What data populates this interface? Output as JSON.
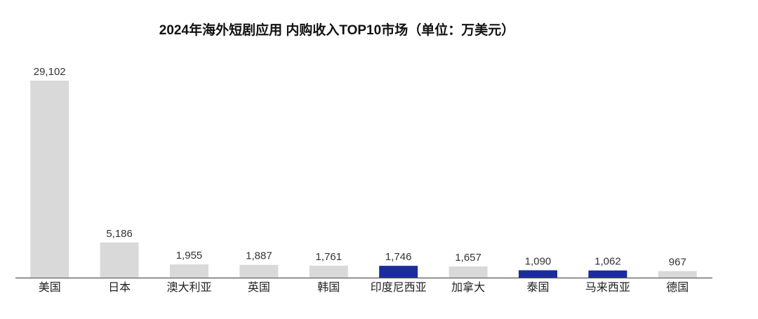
{
  "chart_data": {
    "type": "bar",
    "title": "2024年海外短剧应用 内购收入TOP10市场（单位：万美元）",
    "categories": [
      "美国",
      "日本",
      "澳大利亚",
      "英国",
      "韩国",
      "印度尼西亚",
      "加拿大",
      "泰国",
      "马来西亚",
      "德国"
    ],
    "values": [
      29102,
      5186,
      1955,
      1887,
      1761,
      1746,
      1657,
      1090,
      1062,
      967
    ],
    "value_labels": [
      "29,102",
      "5,186",
      "1,955",
      "1,887",
      "1,761",
      "1,746",
      "1,657",
      "1,090",
      "1,062",
      "967"
    ],
    "colors": [
      "#d9d9d9",
      "#d9d9d9",
      "#d9d9d9",
      "#d9d9d9",
      "#d9d9d9",
      "#1a2c9e",
      "#d9d9d9",
      "#1a2c9e",
      "#1a2c9e",
      "#d9d9d9"
    ]
  }
}
